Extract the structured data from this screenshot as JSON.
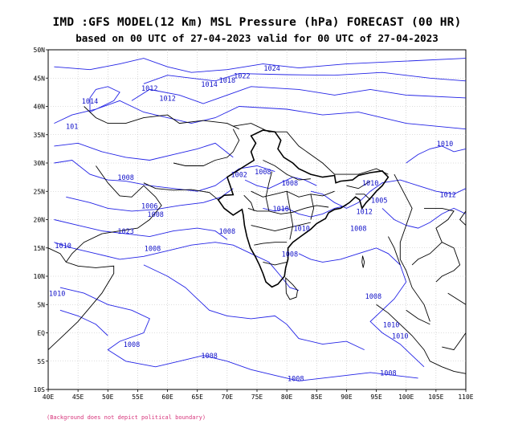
{
  "header": {
    "title": "IMD :GFS MODEL(12 Km) MSL Pressure (hPa) FORECAST (00 HR)",
    "subtitle": "based on 00 UTC of 27-04-2023 valid for 00 UTC of 27-04-2023"
  },
  "axes": {
    "y_ticks": [
      "50N",
      "45N",
      "40N",
      "35N",
      "30N",
      "25N",
      "20N",
      "15N",
      "10N",
      "5N",
      "EQ",
      "5S",
      "10S"
    ],
    "x_ticks": [
      "40E",
      "45E",
      "50E",
      "55E",
      "60E",
      "65E",
      "70E",
      "75E",
      "80E",
      "85E",
      "90E",
      "95E",
      "100E",
      "105E",
      "110E"
    ],
    "lat_range": [
      -10,
      50
    ],
    "lon_range": [
      40,
      110
    ]
  },
  "contour_labels": [
    {
      "text": "1024",
      "lon": 77.5,
      "lat": 46.3
    },
    {
      "text": "1022",
      "lon": 72.5,
      "lat": 45.0
    },
    {
      "text": "1018",
      "lon": 70.0,
      "lat": 44.2
    },
    {
      "text": "1014",
      "lon": 67.0,
      "lat": 43.5
    },
    {
      "text": "1012",
      "lon": 57.0,
      "lat": 42.8
    },
    {
      "text": "1012",
      "lon": 60.0,
      "lat": 41.0
    },
    {
      "text": "1014",
      "lon": 47.0,
      "lat": 40.5
    },
    {
      "text": "101",
      "lon": 44.0,
      "lat": 36.0
    },
    {
      "text": "1008",
      "lon": 53.0,
      "lat": 27.0
    },
    {
      "text": "1002",
      "lon": 72.0,
      "lat": 27.5
    },
    {
      "text": "1008",
      "lon": 76.0,
      "lat": 28.0
    },
    {
      "text": "1008",
      "lon": 80.5,
      "lat": 26.0
    },
    {
      "text": "1010",
      "lon": 79.0,
      "lat": 21.5
    },
    {
      "text": "1006",
      "lon": 57.0,
      "lat": 22.0
    },
    {
      "text": "1008",
      "lon": 58.0,
      "lat": 20.5
    },
    {
      "text": "1010",
      "lon": 82.5,
      "lat": 18.0
    },
    {
      "text": "1010",
      "lon": 94.0,
      "lat": 26.0
    },
    {
      "text": "1012",
      "lon": 93.0,
      "lat": 21.0
    },
    {
      "text": "1005",
      "lon": 95.5,
      "lat": 23.0
    },
    {
      "text": "1008",
      "lon": 92.0,
      "lat": 18.0
    },
    {
      "text": "1008",
      "lon": 70.0,
      "lat": 17.5
    },
    {
      "text": "1023",
      "lon": 53.0,
      "lat": 17.5
    },
    {
      "text": "1010",
      "lon": 42.5,
      "lat": 15.0
    },
    {
      "text": "1008",
      "lon": 57.5,
      "lat": 14.5
    },
    {
      "text": "1008",
      "lon": 80.5,
      "lat": 13.5
    },
    {
      "text": "1010",
      "lon": 41.5,
      "lat": 6.5
    },
    {
      "text": "1008",
      "lon": 94.5,
      "lat": 6.0
    },
    {
      "text": "1010",
      "lon": 97.5,
      "lat": 1.0
    },
    {
      "text": "1010",
      "lon": 99.0,
      "lat": -1.0
    },
    {
      "text": "1008",
      "lon": 54.0,
      "lat": -2.5
    },
    {
      "text": "1008",
      "lon": 67.0,
      "lat": -4.5
    },
    {
      "text": "1008",
      "lon": 97.0,
      "lat": -7.5
    },
    {
      "text": "1008",
      "lon": 81.5,
      "lat": -8.5
    },
    {
      "text": "1010",
      "lon": 106.5,
      "lat": 33.0
    },
    {
      "text": "1012",
      "lon": 107.0,
      "lat": 24.0
    }
  ],
  "footer": {
    "note": "(Background does not depict political boundary)"
  }
}
